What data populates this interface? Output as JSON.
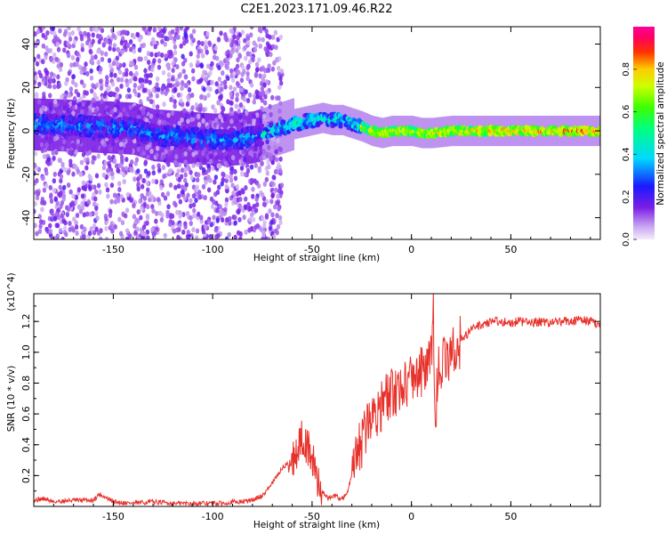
{
  "title": "C2E1.2023.171.09.46.R22",
  "chart_data": [
    {
      "type": "heatmap",
      "xlabel": "Height of straight line (km)",
      "ylabel": "Frequency (Hz)",
      "xlim": [
        -190,
        95
      ],
      "ylim": [
        -50,
        48
      ],
      "x_ticks": [
        -150,
        -100,
        -50,
        0,
        50
      ],
      "y_ticks": [
        -40,
        -20,
        0,
        20,
        40
      ],
      "colorbar": {
        "label": "Normalized spectral amplitude",
        "range": [
          0,
          1
        ],
        "ticks": [
          0.0,
          0.2,
          0.4,
          0.6,
          0.8
        ],
        "colormap": "rainbow (white-lavender, purple, blue, cyan, green, yellow, red, magenta)"
      },
      "ridge_center_hz": {
        "x": [
          -190,
          -160,
          -140,
          -130,
          -100,
          -90,
          -80,
          -60,
          -45,
          -40,
          -35,
          -25,
          -20,
          -15,
          -10,
          -5,
          0,
          5,
          10,
          20,
          40,
          60,
          80,
          95
        ],
        "y": [
          3,
          2,
          1,
          -2,
          -4,
          -4,
          -3,
          3,
          6,
          5,
          5,
          2,
          0,
          -1,
          0,
          0,
          0,
          -1,
          -1,
          0,
          0,
          0,
          0,
          0
        ]
      },
      "noisy_region_km": [
        -190,
        -75
      ],
      "peak_amplitude_region_km": [
        -25,
        95
      ]
    },
    {
      "type": "line",
      "xlabel": "Height of straight line (km)",
      "ylabel": "SNR (10 * v/v)",
      "y_multiplier": "(x10^4)",
      "xlim": [
        -190,
        95
      ],
      "ylim": [
        0,
        1.38
      ],
      "x_ticks": [
        -150,
        -100,
        -50,
        0,
        50
      ],
      "y_ticks": [
        0.2,
        0.4,
        0.6,
        0.8,
        1.0,
        1.2
      ],
      "color": "#e8312b",
      "x": [
        -190,
        -185,
        -180,
        -170,
        -160,
        -157,
        -150,
        -140,
        -130,
        -120,
        -110,
        -100,
        -95,
        -90,
        -85,
        -80,
        -75,
        -70,
        -65,
        -60,
        -57,
        -55,
        -53,
        -50,
        -48,
        -45,
        -42,
        -40,
        -38,
        -36,
        -34,
        -32,
        -30,
        -28,
        -26,
        -24,
        -22,
        -20,
        -18,
        -15,
        -12,
        -10,
        -8,
        -5,
        -2,
        0,
        2,
        4,
        6,
        8,
        10,
        11,
        12,
        14,
        16,
        18,
        20,
        22,
        25,
        28,
        30,
        35,
        40,
        45,
        50,
        55,
        60,
        65,
        70,
        75,
        80,
        85,
        90,
        95
      ],
      "y": [
        0.04,
        0.05,
        0.03,
        0.04,
        0.04,
        0.08,
        0.03,
        0.02,
        0.03,
        0.02,
        0.02,
        0.02,
        0.02,
        0.03,
        0.03,
        0.04,
        0.07,
        0.15,
        0.25,
        0.3,
        0.38,
        0.45,
        0.4,
        0.32,
        0.2,
        0.1,
        0.05,
        0.06,
        0.07,
        0.05,
        0.06,
        0.1,
        0.2,
        0.3,
        0.38,
        0.45,
        0.55,
        0.58,
        0.62,
        0.66,
        0.7,
        0.72,
        0.75,
        0.78,
        0.82,
        0.83,
        0.86,
        0.88,
        0.87,
        0.9,
        0.95,
        1.25,
        0.6,
        0.95,
        0.92,
        0.95,
        0.98,
        1.02,
        1.08,
        1.12,
        1.15,
        1.18,
        1.2,
        1.2,
        1.19,
        1.2,
        1.19,
        1.2,
        1.19,
        1.2,
        1.2,
        1.21,
        1.2,
        1.18
      ]
    }
  ]
}
